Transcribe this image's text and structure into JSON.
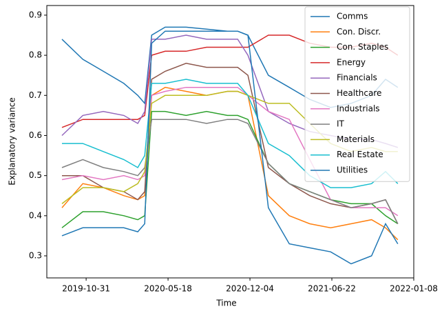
{
  "chart_data": {
    "type": "line",
    "xlabel": "Time",
    "ylabel": "Explanatory variance",
    "x": [
      "2019-09-02",
      "2019-10-23",
      "2019-12-12",
      "2020-01-31",
      "2020-03-05",
      "2020-03-22",
      "2020-04-08",
      "2020-05-11",
      "2020-07-01",
      "2020-08-20",
      "2020-10-10",
      "2020-11-04",
      "2020-11-29",
      "2021-01-18",
      "2021-03-10",
      "2021-04-29",
      "2021-06-19",
      "2021-08-08",
      "2021-09-27",
      "2021-10-31",
      "2021-11-30"
    ],
    "xlim": [
      "2019-07-27",
      "2022-01-08"
    ],
    "xticks": [
      "2019-10-31",
      "2020-05-18",
      "2020-12-04",
      "2021-06-22",
      "2022-01-08"
    ],
    "ylim": [
      0.245,
      0.924
    ],
    "yticks": [
      0.3,
      0.4,
      0.5,
      0.6,
      0.7,
      0.8,
      0.9
    ],
    "legend": "upper right",
    "series": [
      {
        "name": "Comms",
        "color": "#1f77b4",
        "values": [
          0.84,
          0.79,
          0.76,
          0.73,
          0.7,
          0.68,
          0.85,
          0.87,
          0.87,
          0.865,
          0.86,
          0.86,
          0.85,
          0.75,
          0.72,
          0.69,
          0.67,
          0.68,
          0.7,
          0.74,
          0.72
        ]
      },
      {
        "name": "Con. Discr.",
        "color": "#ff7f0e",
        "values": [
          0.42,
          0.48,
          0.47,
          0.45,
          0.44,
          0.45,
          0.7,
          0.72,
          0.71,
          0.7,
          0.71,
          0.71,
          0.7,
          0.45,
          0.4,
          0.38,
          0.37,
          0.38,
          0.39,
          0.37,
          0.34
        ]
      },
      {
        "name": "Con. Staples",
        "color": "#2ca02c",
        "values": [
          0.37,
          0.41,
          0.41,
          0.4,
          0.39,
          0.4,
          0.66,
          0.66,
          0.65,
          0.66,
          0.65,
          0.65,
          0.64,
          0.53,
          0.48,
          0.46,
          0.44,
          0.43,
          0.43,
          0.4,
          0.38
        ]
      },
      {
        "name": "Energy",
        "color": "#d62728",
        "values": [
          0.62,
          0.64,
          0.64,
          0.64,
          0.64,
          0.65,
          0.8,
          0.81,
          0.81,
          0.82,
          0.82,
          0.82,
          0.82,
          0.85,
          0.85,
          0.83,
          0.82,
          0.82,
          0.83,
          0.82,
          0.8
        ]
      },
      {
        "name": "Financials",
        "color": "#9467bd",
        "values": [
          0.6,
          0.65,
          0.66,
          0.65,
          0.63,
          0.66,
          0.84,
          0.84,
          0.85,
          0.84,
          0.84,
          0.84,
          0.8,
          0.66,
          0.63,
          0.61,
          0.6,
          0.59,
          0.59,
          0.58,
          0.57
        ]
      },
      {
        "name": "Healthcare",
        "color": "#8c564b",
        "values": [
          0.5,
          0.5,
          0.47,
          0.46,
          0.44,
          0.46,
          0.74,
          0.76,
          0.78,
          0.77,
          0.77,
          0.77,
          0.75,
          0.52,
          0.48,
          0.45,
          0.43,
          0.42,
          0.43,
          0.44,
          0.38
        ]
      },
      {
        "name": "Industrials",
        "color": "#e377c2",
        "values": [
          0.49,
          0.5,
          0.49,
          0.5,
          0.49,
          0.5,
          0.7,
          0.71,
          0.72,
          0.72,
          0.72,
          0.72,
          0.7,
          0.66,
          0.64,
          0.54,
          0.44,
          0.42,
          0.42,
          0.42,
          0.4
        ]
      },
      {
        "name": "IT",
        "color": "#7f7f7f",
        "values": [
          0.52,
          0.54,
          0.52,
          0.51,
          0.5,
          0.52,
          0.64,
          0.64,
          0.64,
          0.63,
          0.64,
          0.64,
          0.63,
          0.53,
          0.48,
          0.46,
          0.44,
          0.42,
          0.43,
          0.44,
          0.38
        ]
      },
      {
        "name": "Materials",
        "color": "#bcbd22",
        "values": [
          0.43,
          0.47,
          0.47,
          0.46,
          0.48,
          0.51,
          0.68,
          0.7,
          0.7,
          0.7,
          0.71,
          0.71,
          0.7,
          0.68,
          0.68,
          0.63,
          0.58,
          0.56,
          0.57,
          0.56,
          0.56
        ]
      },
      {
        "name": "Real Estate",
        "color": "#17becf",
        "values": [
          0.58,
          0.58,
          0.56,
          0.54,
          0.52,
          0.55,
          0.73,
          0.73,
          0.74,
          0.73,
          0.73,
          0.73,
          0.7,
          0.58,
          0.55,
          0.5,
          0.47,
          0.47,
          0.48,
          0.51,
          0.48
        ]
      },
      {
        "name": "Utilities",
        "color": "#1f77b4",
        "values": [
          0.35,
          0.37,
          0.37,
          0.37,
          0.36,
          0.38,
          0.83,
          0.86,
          0.86,
          0.86,
          0.86,
          0.86,
          0.85,
          0.42,
          0.33,
          0.32,
          0.31,
          0.28,
          0.3,
          0.38,
          0.33
        ]
      }
    ]
  }
}
